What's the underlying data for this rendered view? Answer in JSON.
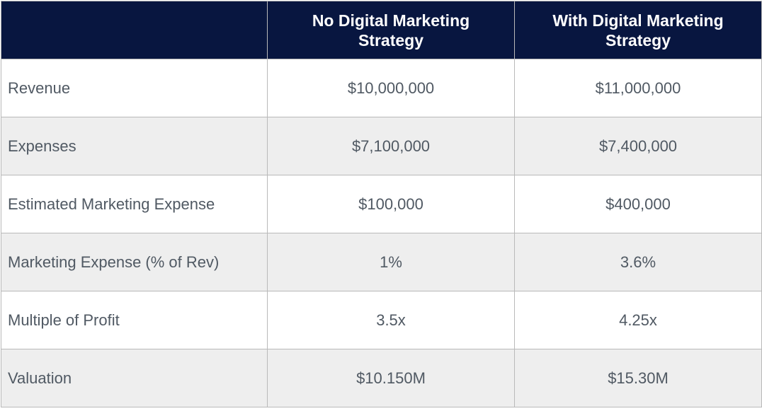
{
  "table": {
    "headers": [
      "",
      "No Digital Marketing Strategy",
      "With Digital Marketing Strategy"
    ],
    "rows": [
      {
        "label": "Revenue",
        "no_strategy": "$10,000,000",
        "with_strategy": "$11,000,000"
      },
      {
        "label": "Expenses",
        "no_strategy": "$7,100,000",
        "with_strategy": "$7,400,000"
      },
      {
        "label": "Estimated Marketing Expense",
        "no_strategy": "$100,000",
        "with_strategy": "$400,000"
      },
      {
        "label": "Marketing Expense (% of Rev)",
        "no_strategy": "1%",
        "with_strategy": "3.6%"
      },
      {
        "label": "Multiple of Profit",
        "no_strategy": "3.5x",
        "with_strategy": "4.25x"
      },
      {
        "label": "Valuation",
        "no_strategy": "$10.150M",
        "with_strategy": "$15.30M"
      }
    ]
  },
  "colors": {
    "header_bg": "#081640",
    "header_text": "#ffffff",
    "body_text": "#505963",
    "row_alt_bg": "#eeeeee",
    "border": "#b9b9b9"
  }
}
